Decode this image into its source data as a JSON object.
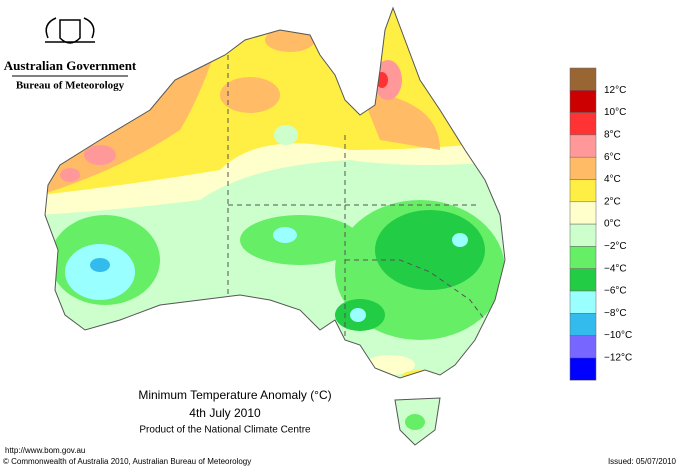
{
  "header": {
    "government": "Australian Government",
    "bureau": "Bureau of Meteorology"
  },
  "map": {
    "title": "Minimum Temperature Anomaly (°C)",
    "date": "4th July 2010",
    "product": "Product of the National Climate Centre"
  },
  "legend": {
    "colors": [
      "#996633",
      "#cc0000",
      "#ff3333",
      "#ff9999",
      "#ffbb66",
      "#ffee44",
      "#ffffcc",
      "#ccffcc",
      "#66ee66",
      "#22cc44",
      "#99ffff",
      "#33bbee",
      "#7766ff",
      "#0000ff"
    ],
    "labels": [
      "12°C",
      "10°C",
      "8°C",
      "6°C",
      "4°C",
      "2°C",
      "0°C",
      "−2°C",
      "−4°C",
      "−6°C",
      "−8°C",
      "−10°C",
      "−12°C"
    ]
  },
  "footer": {
    "url": "http://www.bom.gov.au",
    "copyright": "© Commonwealth of Australia 2010, Australian Bureau of Meteorology",
    "issued": "Issued: 05/07/2010"
  }
}
